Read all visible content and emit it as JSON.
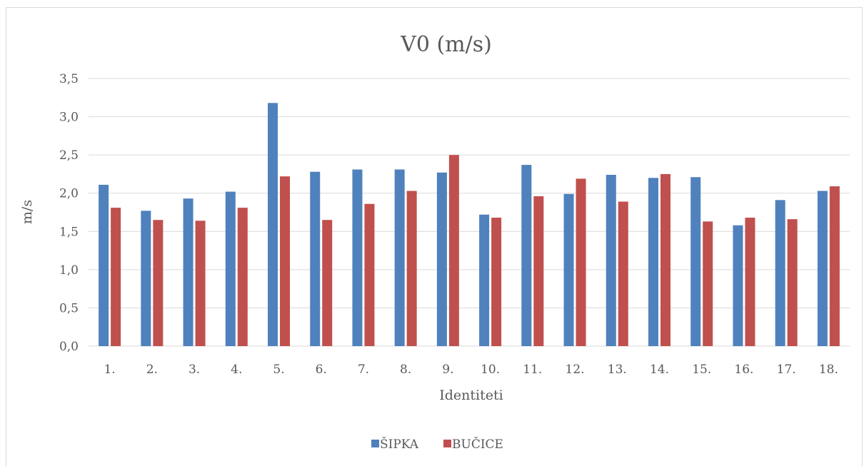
{
  "chart_data": {
    "type": "bar",
    "title": "V0 (m/s)",
    "xlabel": "Identiteti",
    "ylabel": "m/s",
    "ylim": [
      0,
      3.5
    ],
    "yticks": [
      "0,0",
      "0,5",
      "1,0",
      "1,5",
      "2,0",
      "2,5",
      "3,0",
      "3,5"
    ],
    "categories": [
      "1.",
      "2.",
      "3.",
      "4.",
      "5.",
      "6.",
      "7.",
      "8.",
      "9.",
      "10.",
      "11.",
      "12.",
      "13.",
      "14.",
      "15.",
      "16.",
      "17.",
      "18."
    ],
    "series": [
      {
        "name": "ŠIPKA",
        "color": "#4f81bd",
        "values": [
          2.11,
          1.77,
          1.93,
          2.02,
          3.18,
          2.28,
          2.31,
          2.31,
          2.27,
          1.72,
          2.37,
          1.99,
          2.24,
          2.2,
          2.21,
          1.58,
          1.91,
          2.03
        ]
      },
      {
        "name": "BUČICE",
        "color": "#c0504d",
        "values": [
          1.81,
          1.65,
          1.64,
          1.81,
          2.22,
          1.65,
          1.86,
          2.03,
          2.5,
          1.68,
          1.96,
          2.19,
          1.89,
          2.25,
          1.63,
          1.68,
          1.66,
          2.09
        ]
      }
    ],
    "grid": true,
    "legend_position": "bottom"
  }
}
